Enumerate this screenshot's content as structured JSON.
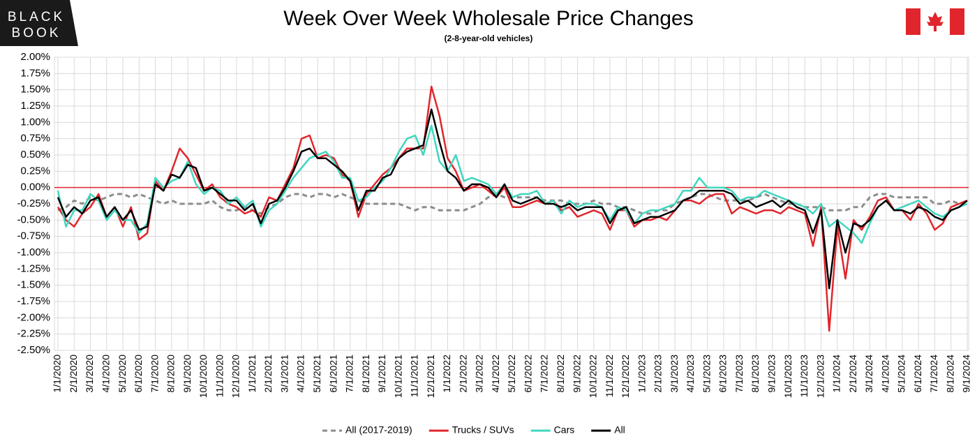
{
  "logo": [
    "BLACK",
    "BOOK"
  ],
  "chart_data": {
    "type": "line",
    "title": "Week Over Week Wholesale Price Changes",
    "subtitle": "(2-8-year-old vehicles)",
    "categories": [
      "1/1/2020",
      null,
      "2/1/2020",
      null,
      "3/1/2020",
      null,
      "4/1/2020",
      null,
      "5/1/2020",
      null,
      "6/1/2020",
      null,
      "7/1/2020",
      null,
      "8/1/2020",
      null,
      "9/1/2020",
      null,
      "10/1/2020",
      null,
      "11/1/2020",
      null,
      "12/1/2020",
      null,
      "1/1/2021",
      null,
      "2/1/2021",
      null,
      "3/1/2021",
      null,
      "4/1/2021",
      null,
      "5/1/2021",
      null,
      "6/1/2021",
      null,
      "7/1/2021",
      null,
      "8/1/2021",
      null,
      "9/1/2021",
      null,
      "10/1/2021",
      null,
      "11/1/2021",
      null,
      "12/1/2021",
      null,
      "1/1/2022",
      null,
      "2/1/2022",
      null,
      "3/1/2022",
      null,
      "4/1/2022",
      null,
      "5/1/2022",
      null,
      "6/1/2022",
      null,
      "7/1/2022",
      null,
      "8/1/2022",
      null,
      "9/1/2022",
      null,
      "10/1/2022",
      null,
      "11/1/2022",
      null,
      "12/1/2022",
      null,
      "1/1/2023",
      null,
      "2/1/2023",
      null,
      "3/1/2023",
      null,
      "4/1/2023",
      null,
      "5/1/2023",
      null,
      "6/1/2023",
      null,
      "7/1/2023",
      null,
      "8/1/2023",
      null,
      "9/1/2023",
      null,
      "10/1/2023",
      null,
      "11/1/2023",
      null,
      "12/1/2023",
      null,
      "1/1/2024",
      null,
      "2/1/2024",
      null,
      "3/1/2024",
      null,
      "4/1/2024",
      null,
      "5/1/2024",
      null,
      "6/1/2024",
      null,
      "7/1/2024",
      null,
      "8/1/2024",
      null,
      "9/1/2024"
    ],
    "series": [
      {
        "name": "All (2017-2019)",
        "color": "#8c8c8c",
        "style": "dashed",
        "values": [
          -0.35,
          -0.3,
          -0.2,
          -0.25,
          -0.15,
          -0.2,
          -0.15,
          -0.1,
          -0.1,
          -0.15,
          -0.1,
          -0.15,
          -0.2,
          -0.25,
          -0.2,
          -0.25,
          -0.25,
          -0.25,
          -0.25,
          -0.2,
          -0.3,
          -0.35,
          -0.35,
          -0.3,
          -0.35,
          -0.4,
          -0.3,
          -0.25,
          -0.15,
          -0.1,
          -0.1,
          -0.15,
          -0.1,
          -0.1,
          -0.15,
          -0.1,
          -0.15,
          -0.2,
          -0.25,
          -0.25,
          -0.25,
          -0.25,
          -0.25,
          -0.3,
          -0.35,
          -0.3,
          -0.3,
          -0.35,
          -0.35,
          -0.35,
          -0.35,
          -0.3,
          -0.25,
          -0.15,
          -0.1,
          -0.15,
          -0.15,
          -0.15,
          -0.15,
          -0.15,
          -0.2,
          -0.2,
          -0.2,
          -0.25,
          -0.25,
          -0.25,
          -0.2,
          -0.25,
          -0.25,
          -0.3,
          -0.3,
          -0.35,
          -0.4,
          -0.4,
          -0.35,
          -0.35,
          -0.25,
          -0.2,
          -0.15,
          -0.1,
          -0.1,
          -0.15,
          -0.2,
          -0.2,
          -0.2,
          -0.2,
          -0.15,
          -0.1,
          -0.15,
          -0.2,
          -0.25,
          -0.25,
          -0.3,
          -0.3,
          -0.3,
          -0.35,
          -0.35,
          -0.35,
          -0.3,
          -0.3,
          -0.15,
          -0.1,
          -0.1,
          -0.15,
          -0.15,
          -0.15,
          -0.15,
          -0.15,
          -0.25,
          -0.25,
          -0.2,
          -0.25,
          -0.2
        ]
      },
      {
        "name": "Trucks / SUVs",
        "color": "#e0262c",
        "style": "solid",
        "values": [
          -0.3,
          -0.5,
          -0.6,
          -0.4,
          -0.3,
          -0.1,
          -0.45,
          -0.3,
          -0.6,
          -0.3,
          -0.8,
          -0.7,
          0.1,
          -0.05,
          0.25,
          0.6,
          0.45,
          0.2,
          -0.05,
          0.05,
          -0.15,
          -0.25,
          -0.3,
          -0.4,
          -0.35,
          -0.45,
          -0.15,
          -0.2,
          0.05,
          0.3,
          0.75,
          0.8,
          0.45,
          0.5,
          0.45,
          0.2,
          0.1,
          -0.45,
          -0.1,
          0.05,
          0.2,
          0.3,
          0.45,
          0.6,
          0.6,
          0.6,
          1.55,
          1.1,
          0.45,
          0.25,
          -0.05,
          0.0,
          0.05,
          -0.05,
          -0.15,
          0.0,
          -0.3,
          -0.3,
          -0.25,
          -0.2,
          -0.25,
          -0.2,
          -0.35,
          -0.3,
          -0.45,
          -0.4,
          -0.35,
          -0.4,
          -0.65,
          -0.35,
          -0.35,
          -0.6,
          -0.5,
          -0.5,
          -0.45,
          -0.5,
          -0.35,
          -0.2,
          -0.2,
          -0.25,
          -0.15,
          -0.1,
          -0.1,
          -0.4,
          -0.3,
          -0.35,
          -0.4,
          -0.35,
          -0.35,
          -0.4,
          -0.3,
          -0.35,
          -0.4,
          -0.9,
          -0.3,
          -2.2,
          -0.6,
          -1.4,
          -0.5,
          -0.65,
          -0.45,
          -0.2,
          -0.15,
          -0.35,
          -0.35,
          -0.5,
          -0.25,
          -0.4,
          -0.65,
          -0.55,
          -0.3,
          -0.25,
          -0.2
        ]
      },
      {
        "name": "Cars",
        "color": "#40d6bf",
        "style": "solid",
        "values": [
          -0.05,
          -0.6,
          -0.35,
          -0.35,
          -0.1,
          -0.2,
          -0.5,
          -0.35,
          -0.5,
          -0.5,
          -0.7,
          -0.55,
          0.15,
          0.0,
          0.1,
          0.15,
          0.4,
          0.05,
          -0.1,
          0.0,
          -0.05,
          -0.25,
          -0.15,
          -0.3,
          -0.2,
          -0.6,
          -0.35,
          -0.25,
          -0.05,
          0.15,
          0.3,
          0.45,
          0.5,
          0.55,
          0.4,
          0.15,
          0.15,
          -0.2,
          -0.15,
          0.0,
          0.1,
          0.3,
          0.55,
          0.75,
          0.8,
          0.5,
          0.95,
          0.4,
          0.25,
          0.5,
          0.1,
          0.15,
          0.1,
          0.05,
          -0.1,
          0.05,
          -0.15,
          -0.1,
          -0.1,
          -0.05,
          -0.25,
          -0.2,
          -0.4,
          -0.2,
          -0.3,
          -0.25,
          -0.25,
          -0.3,
          -0.5,
          -0.3,
          -0.35,
          -0.55,
          -0.4,
          -0.35,
          -0.35,
          -0.3,
          -0.25,
          -0.05,
          -0.05,
          0.15,
          0.0,
          0.0,
          0.0,
          -0.05,
          -0.2,
          -0.15,
          -0.15,
          -0.05,
          -0.1,
          -0.15,
          -0.2,
          -0.25,
          -0.3,
          -0.4,
          -0.25,
          -0.6,
          -0.5,
          -0.6,
          -0.7,
          -0.85,
          -0.55,
          -0.3,
          -0.2,
          -0.35,
          -0.3,
          -0.25,
          -0.2,
          -0.3,
          -0.4,
          -0.45,
          -0.35,
          -0.3,
          -0.25
        ]
      },
      {
        "name": "All",
        "color": "#000000",
        "style": "solid",
        "values": [
          -0.15,
          -0.45,
          -0.3,
          -0.4,
          -0.2,
          -0.15,
          -0.45,
          -0.3,
          -0.5,
          -0.35,
          -0.65,
          -0.6,
          0.05,
          -0.05,
          0.2,
          0.15,
          0.35,
          0.3,
          -0.05,
          0.0,
          -0.1,
          -0.2,
          -0.2,
          -0.35,
          -0.25,
          -0.55,
          -0.25,
          -0.2,
          0.0,
          0.25,
          0.55,
          0.6,
          0.45,
          0.45,
          0.35,
          0.25,
          0.1,
          -0.35,
          -0.05,
          -0.05,
          0.15,
          0.2,
          0.45,
          0.55,
          0.6,
          0.65,
          1.2,
          0.7,
          0.25,
          0.15,
          -0.05,
          0.05,
          0.05,
          0.0,
          -0.15,
          0.05,
          -0.2,
          -0.25,
          -0.2,
          -0.15,
          -0.25,
          -0.25,
          -0.3,
          -0.25,
          -0.35,
          -0.3,
          -0.3,
          -0.3,
          -0.55,
          -0.35,
          -0.3,
          -0.55,
          -0.5,
          -0.45,
          -0.45,
          -0.4,
          -0.35,
          -0.2,
          -0.15,
          -0.05,
          -0.05,
          -0.05,
          -0.05,
          -0.1,
          -0.25,
          -0.2,
          -0.3,
          -0.25,
          -0.2,
          -0.3,
          -0.2,
          -0.3,
          -0.35,
          -0.7,
          -0.35,
          -1.55,
          -0.5,
          -1.0,
          -0.55,
          -0.6,
          -0.5,
          -0.3,
          -0.2,
          -0.35,
          -0.35,
          -0.4,
          -0.3,
          -0.35,
          -0.45,
          -0.5,
          -0.35,
          -0.3,
          -0.2
        ]
      }
    ],
    "ylim": [
      -2.5,
      2.0
    ],
    "yticks": [
      {
        "value": 2.0,
        "label": "2.00%"
      },
      {
        "value": 1.75,
        "label": "1.75%"
      },
      {
        "value": 1.5,
        "label": "1.50%"
      },
      {
        "value": 1.25,
        "label": "1.25%"
      },
      {
        "value": 1.0,
        "label": "1.00%"
      },
      {
        "value": 0.75,
        "label": "0.75%"
      },
      {
        "value": 0.5,
        "label": "0.50%"
      },
      {
        "value": 0.25,
        "label": "0.25%"
      },
      {
        "value": 0,
        "label": "0.00%"
      },
      {
        "value": -0.25,
        "label": "-0.25%"
      },
      {
        "value": -0.5,
        "label": "-0.50%"
      },
      {
        "value": -0.75,
        "label": "-0.75%"
      },
      {
        "value": -1.0,
        "label": "-1.00%"
      },
      {
        "value": -1.25,
        "label": "-1.25%"
      },
      {
        "value": -1.5,
        "label": "-1.50%"
      },
      {
        "value": -1.75,
        "label": "-1.75%"
      },
      {
        "value": -2.0,
        "label": "-2.00%"
      },
      {
        "value": -2.25,
        "label": "-2.25%"
      },
      {
        "value": -2.5,
        "label": "-2.50%"
      }
    ],
    "grid": true,
    "zero_line_color": "#e0262c",
    "legend": "bottom"
  }
}
